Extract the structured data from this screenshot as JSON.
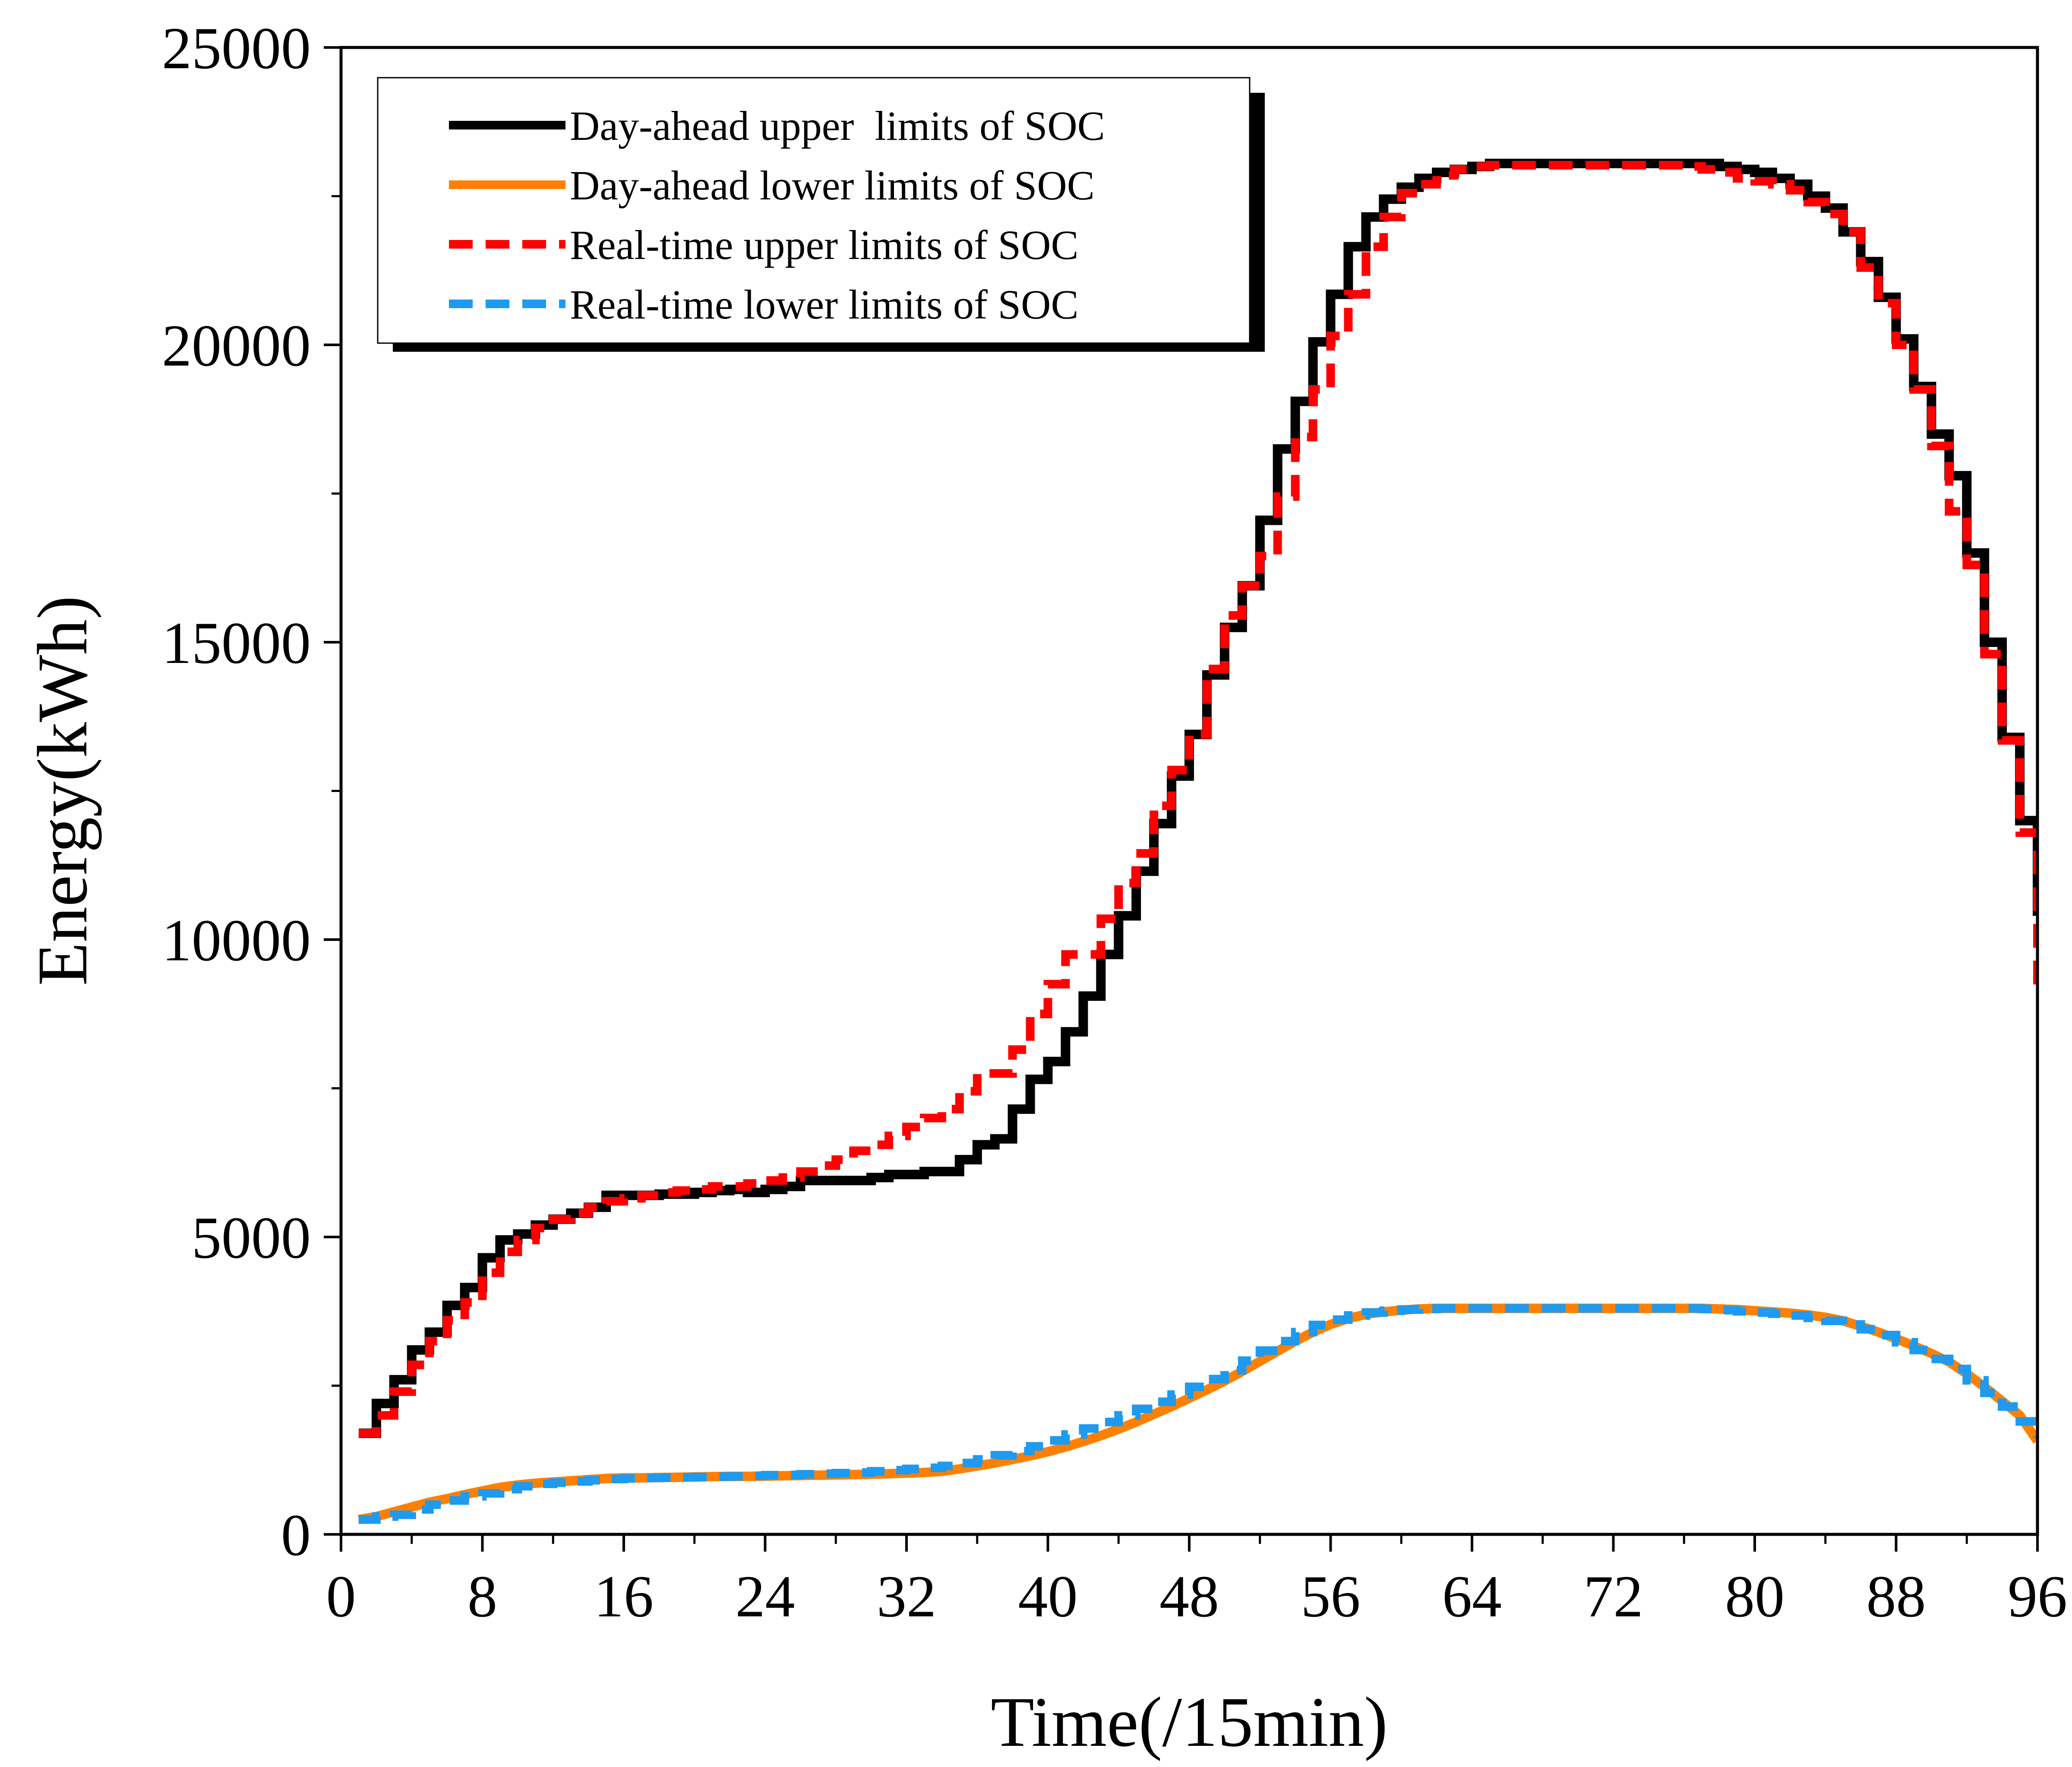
{
  "chart_data": {
    "type": "line",
    "title": "",
    "xlabel": "Time(/15min)",
    "ylabel": "Energy(kWh)",
    "xlim": [
      0,
      96
    ],
    "ylim": [
      0,
      25000
    ],
    "x_ticks": [
      0,
      8,
      16,
      24,
      32,
      40,
      48,
      56,
      64,
      72,
      80,
      88,
      96
    ],
    "x_tick_labels": [
      "0",
      "8",
      "16",
      "24",
      "32",
      "40",
      "48",
      "56",
      "64",
      "72",
      "80",
      "88",
      "96"
    ],
    "y_ticks": [
      0,
      5000,
      10000,
      15000,
      20000,
      25000
    ],
    "y_tick_labels": [
      "0",
      "5000",
      "10000",
      "15000",
      "20000",
      "25000"
    ],
    "grid": false,
    "legend_position": "top-left",
    "x": [
      1,
      2,
      3,
      4,
      5,
      6,
      7,
      8,
      9,
      10,
      11,
      12,
      13,
      14,
      15,
      16,
      17,
      18,
      19,
      20,
      21,
      22,
      23,
      24,
      25,
      26,
      27,
      28,
      29,
      30,
      31,
      32,
      33,
      34,
      35,
      36,
      37,
      38,
      39,
      40,
      41,
      42,
      43,
      44,
      45,
      46,
      47,
      48,
      49,
      50,
      51,
      52,
      53,
      54,
      55,
      56,
      57,
      58,
      59,
      60,
      61,
      62,
      63,
      64,
      65,
      66,
      67,
      68,
      69,
      70,
      71,
      72,
      73,
      74,
      75,
      76,
      77,
      78,
      79,
      80,
      81,
      82,
      83,
      84,
      85,
      86,
      87,
      88,
      89,
      90,
      91,
      92,
      93,
      94,
      95,
      96
    ],
    "series": [
      {
        "name": "Day-ahead upper  limits of SOC",
        "color": "#000000",
        "style": "solid",
        "step": true,
        "values": [
          1700,
          2200,
          2600,
          3100,
          3400,
          3850,
          4150,
          4650,
          4950,
          5050,
          5200,
          5300,
          5400,
          5500,
          5700,
          5700,
          5700,
          5720,
          5720,
          5750,
          5780,
          5800,
          5750,
          5800,
          5850,
          5950,
          5950,
          5950,
          5950,
          6000,
          6050,
          6050,
          6100,
          6100,
          6300,
          6550,
          6650,
          7150,
          7650,
          7950,
          8450,
          9050,
          9750,
          10400,
          11150,
          11950,
          12750,
          13450,
          14450,
          15250,
          15950,
          17050,
          18250,
          19050,
          20050,
          20850,
          21650,
          22150,
          22450,
          22650,
          22800,
          22900,
          22950,
          23000,
          23050,
          23050,
          23050,
          23050,
          23050,
          23050,
          23050,
          23050,
          23050,
          23050,
          23050,
          23050,
          23050,
          23000,
          22950,
          22900,
          22800,
          22700,
          22500,
          22300,
          21900,
          21400,
          20800,
          20100,
          19300,
          18500,
          17800,
          16500,
          15000,
          13400,
          12000,
          10400
        ]
      },
      {
        "name": "Day-ahead lower limits of SOC",
        "color": "#ff8000",
        "style": "solid",
        "step": false,
        "values": [
          250,
          300,
          380,
          460,
          540,
          600,
          670,
          730,
          790,
          830,
          860,
          880,
          900,
          920,
          940,
          950,
          950,
          955,
          960,
          965,
          970,
          975,
          975,
          980,
          985,
          990,
          995,
          1000,
          1005,
          1010,
          1020,
          1030,
          1040,
          1060,
          1100,
          1150,
          1200,
          1260,
          1320,
          1390,
          1470,
          1560,
          1660,
          1770,
          1890,
          2020,
          2150,
          2290,
          2430,
          2580,
          2740,
          2910,
          3080,
          3250,
          3400,
          3530,
          3630,
          3700,
          3740,
          3770,
          3790,
          3800,
          3800,
          3800,
          3800,
          3800,
          3800,
          3800,
          3800,
          3800,
          3800,
          3800,
          3800,
          3800,
          3800,
          3800,
          3800,
          3790,
          3780,
          3760,
          3740,
          3720,
          3690,
          3650,
          3590,
          3500,
          3400,
          3290,
          3170,
          3040,
          2900,
          2700,
          2480,
          2240,
          2000,
          1570
        ]
      },
      {
        "name": "Real-time upper limits of SOC",
        "color": "#ff0000",
        "style": "dashed",
        "step": true,
        "values": [
          1700,
          2000,
          2400,
          2850,
          3250,
          3600,
          3900,
          4400,
          4750,
          4950,
          5150,
          5300,
          5400,
          5500,
          5600,
          5650,
          5700,
          5750,
          5780,
          5800,
          5850,
          5850,
          5900,
          5950,
          6000,
          6100,
          6200,
          6300,
          6450,
          6550,
          6700,
          6850,
          7000,
          7150,
          7450,
          7750,
          7750,
          8150,
          8750,
          9250,
          9750,
          9750,
          10350,
          10950,
          11450,
          12250,
          12850,
          13450,
          14550,
          15450,
          15950,
          16450,
          17450,
          18450,
          19250,
          20150,
          20850,
          21650,
          22150,
          22550,
          22700,
          22850,
          22950,
          23000,
          23020,
          23020,
          23020,
          23020,
          23020,
          23020,
          23020,
          23020,
          23020,
          23020,
          23020,
          23000,
          22950,
          22900,
          22800,
          22750,
          22700,
          22600,
          22400,
          22200,
          21900,
          21300,
          20700,
          20000,
          19250,
          18300,
          17200,
          16300,
          14800,
          13350,
          11800,
          9150
        ]
      },
      {
        "name": "Real-time lower limits of SOC",
        "color": "#1e9af0",
        "style": "dashed",
        "step": true,
        "values": [
          250,
          300,
          330,
          420,
          500,
          570,
          640,
          690,
          760,
          810,
          850,
          870,
          890,
          910,
          930,
          940,
          950,
          955,
          960,
          965,
          970,
          975,
          985,
          995,
          1000,
          1010,
          1020,
          1030,
          1040,
          1060,
          1080,
          1100,
          1120,
          1150,
          1200,
          1260,
          1330,
          1400,
          1480,
          1580,
          1680,
          1780,
          1890,
          2000,
          2110,
          2230,
          2350,
          2480,
          2610,
          2760,
          2920,
          3090,
          3250,
          3400,
          3520,
          3610,
          3680,
          3730,
          3760,
          3780,
          3790,
          3800,
          3800,
          3800,
          3800,
          3800,
          3800,
          3800,
          3800,
          3800,
          3800,
          3800,
          3800,
          3800,
          3800,
          3800,
          3790,
          3770,
          3750,
          3730,
          3710,
          3680,
          3640,
          3590,
          3530,
          3450,
          3350,
          3230,
          3100,
          2950,
          2780,
          2590,
          2380,
          2150,
          1900,
          1620
        ]
      }
    ]
  }
}
